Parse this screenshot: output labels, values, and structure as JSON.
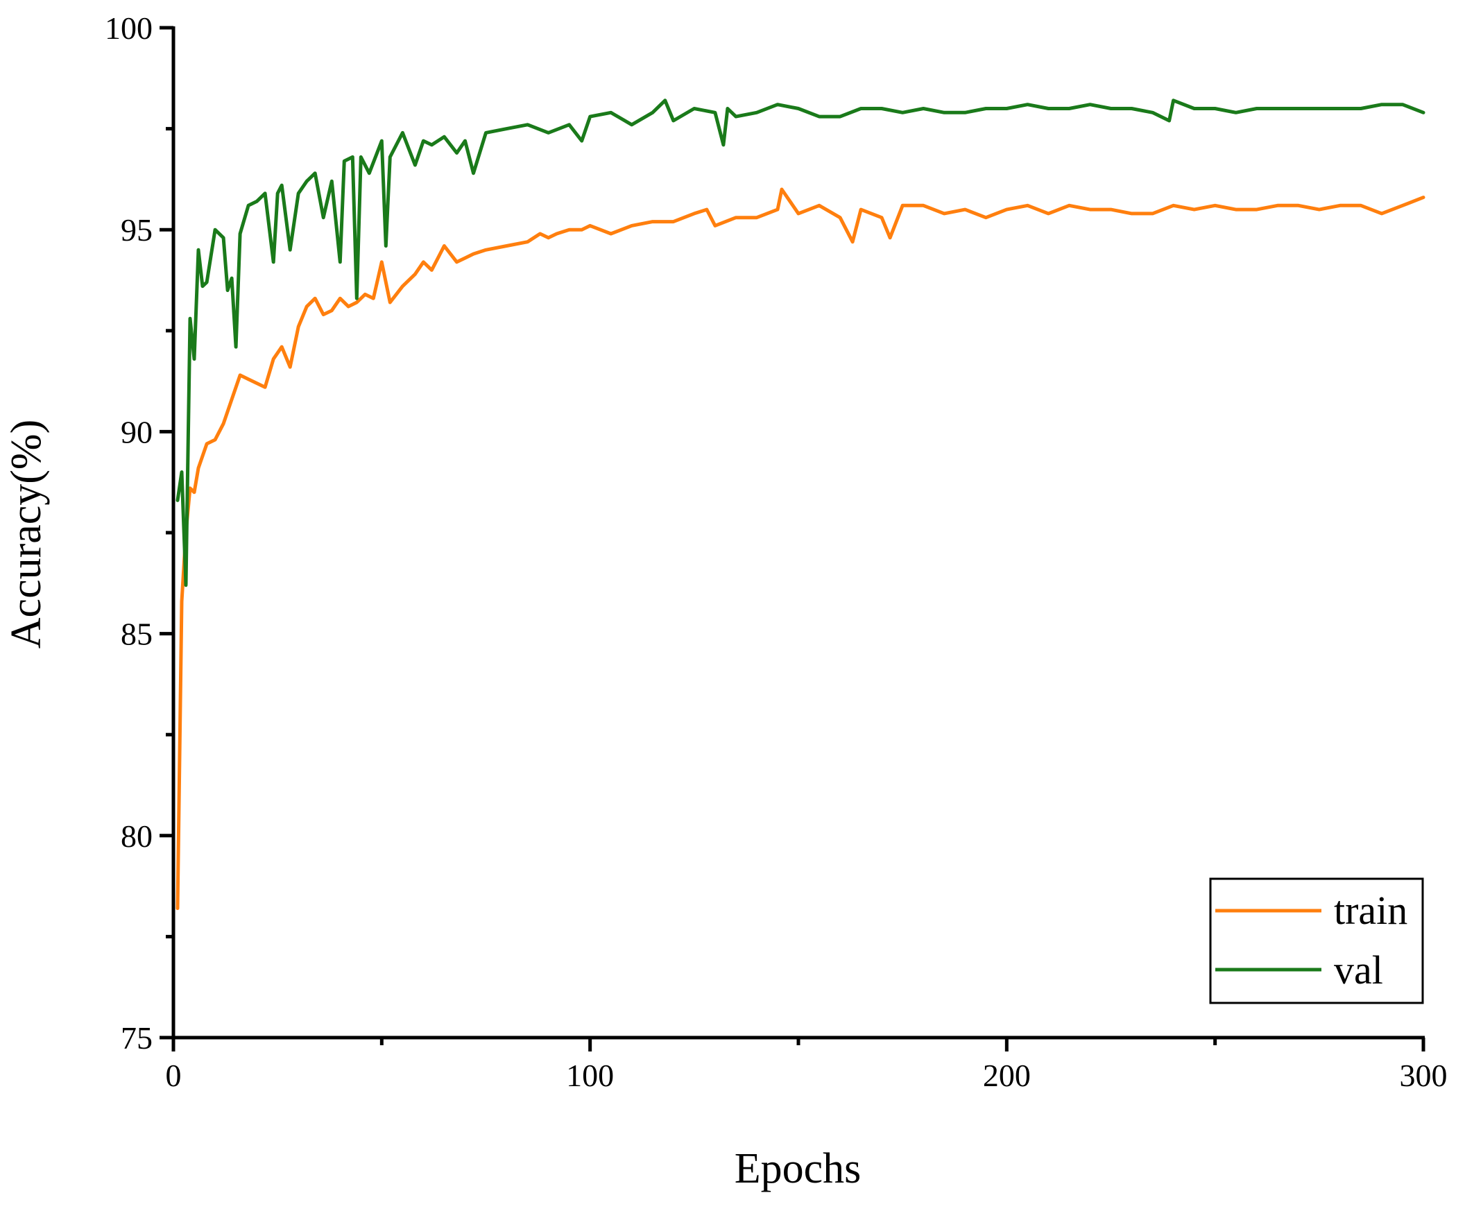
{
  "chart_data": {
    "type": "line",
    "xlabel": "Epochs",
    "ylabel": "Accuracy(%)",
    "xlim": [
      0,
      300
    ],
    "ylim": [
      75,
      100
    ],
    "x_ticks": [
      0,
      100,
      200,
      300
    ],
    "x_minor_ticks": [
      50,
      150,
      250
    ],
    "y_ticks": [
      75,
      80,
      85,
      90,
      95,
      100
    ],
    "y_minor_ticks": [
      77.5,
      82.5,
      87.5,
      92.5,
      97.5
    ],
    "grid": false,
    "legend_position": "bottom-right",
    "series": [
      {
        "name": "train",
        "color": "#ff7f0e",
        "x": [
          1,
          2,
          3,
          4,
          5,
          6,
          8,
          10,
          12,
          14,
          16,
          18,
          20,
          22,
          24,
          26,
          28,
          30,
          32,
          34,
          36,
          38,
          40,
          42,
          44,
          46,
          48,
          50,
          52,
          55,
          58,
          60,
          62,
          65,
          68,
          70,
          72,
          75,
          80,
          85,
          88,
          90,
          92,
          95,
          98,
          100,
          105,
          110,
          115,
          120,
          125,
          128,
          130,
          135,
          140,
          145,
          146,
          150,
          155,
          160,
          163,
          165,
          170,
          172,
          175,
          180,
          185,
          190,
          195,
          200,
          205,
          210,
          215,
          220,
          225,
          230,
          235,
          240,
          245,
          250,
          255,
          260,
          265,
          270,
          275,
          280,
          285,
          290,
          295,
          300
        ],
        "y": [
          78.2,
          85.8,
          87.5,
          88.6,
          88.5,
          89.1,
          89.7,
          89.8,
          90.2,
          90.8,
          91.4,
          91.3,
          91.2,
          91.1,
          91.8,
          92.1,
          91.6,
          92.6,
          93.1,
          93.3,
          92.9,
          93.0,
          93.3,
          93.1,
          93.2,
          93.4,
          93.3,
          94.2,
          93.2,
          93.6,
          93.9,
          94.2,
          94.0,
          94.6,
          94.2,
          94.3,
          94.4,
          94.5,
          94.6,
          94.7,
          94.9,
          94.8,
          94.9,
          95.0,
          95.0,
          95.1,
          94.9,
          95.1,
          95.2,
          95.2,
          95.4,
          95.5,
          95.1,
          95.3,
          95.3,
          95.5,
          96.0,
          95.4,
          95.6,
          95.3,
          94.7,
          95.5,
          95.3,
          94.8,
          95.6,
          95.6,
          95.4,
          95.5,
          95.3,
          95.5,
          95.6,
          95.4,
          95.6,
          95.5,
          95.5,
          95.4,
          95.4,
          95.6,
          95.5,
          95.6,
          95.5,
          95.5,
          95.6,
          95.6,
          95.5,
          95.6,
          95.6,
          95.4,
          95.6,
          95.8
        ]
      },
      {
        "name": "val",
        "color": "#1a7a1a",
        "x": [
          1,
          2,
          3,
          4,
          5,
          6,
          7,
          8,
          10,
          12,
          13,
          14,
          15,
          16,
          18,
          20,
          22,
          24,
          25,
          26,
          28,
          30,
          32,
          34,
          36,
          38,
          40,
          41,
          43,
          44,
          45,
          47,
          50,
          51,
          52,
          55,
          58,
          60,
          62,
          65,
          68,
          70,
          72,
          75,
          80,
          85,
          90,
          95,
          98,
          100,
          105,
          110,
          115,
          118,
          120,
          125,
          130,
          132,
          133,
          135,
          140,
          145,
          150,
          155,
          160,
          165,
          170,
          175,
          180,
          185,
          190,
          195,
          200,
          205,
          210,
          215,
          220,
          225,
          230,
          235,
          239,
          240,
          245,
          250,
          255,
          260,
          265,
          270,
          275,
          280,
          285,
          290,
          295,
          300
        ],
        "y": [
          88.3,
          89.0,
          86.2,
          92.8,
          91.8,
          94.5,
          93.6,
          93.7,
          95.0,
          94.8,
          93.5,
          93.8,
          92.1,
          94.9,
          95.6,
          95.7,
          95.9,
          94.2,
          95.9,
          96.1,
          94.5,
          95.9,
          96.2,
          96.4,
          95.3,
          96.2,
          94.2,
          96.7,
          96.8,
          93.3,
          96.8,
          96.4,
          97.2,
          94.6,
          96.8,
          97.4,
          96.6,
          97.2,
          97.1,
          97.3,
          96.9,
          97.2,
          96.4,
          97.4,
          97.5,
          97.6,
          97.4,
          97.6,
          97.2,
          97.8,
          97.9,
          97.6,
          97.9,
          98.2,
          97.7,
          98.0,
          97.9,
          97.1,
          98.0,
          97.8,
          97.9,
          98.1,
          98.0,
          97.8,
          97.8,
          98.0,
          98.0,
          97.9,
          98.0,
          97.9,
          97.9,
          98.0,
          98.0,
          98.1,
          98.0,
          98.0,
          98.1,
          98.0,
          98.0,
          97.9,
          97.7,
          98.2,
          98.0,
          98.0,
          97.9,
          98.0,
          98.0,
          98.0,
          98.0,
          98.0,
          98.0,
          98.1,
          98.1,
          97.9
        ]
      }
    ]
  }
}
